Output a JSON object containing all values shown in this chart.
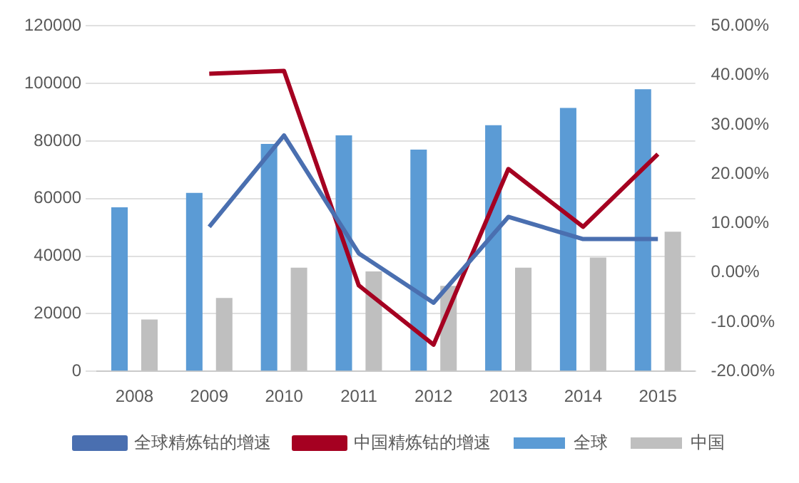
{
  "chart_data": {
    "type": "bar",
    "categories": [
      "2008",
      "2009",
      "2010",
      "2011",
      "2012",
      "2013",
      "2014",
      "2015"
    ],
    "series": [
      {
        "name": "全球",
        "color": "#5b9bd5",
        "values": [
          57000,
          62000,
          79000,
          82000,
          77000,
          85500,
          91500,
          98000
        ]
      },
      {
        "name": "中国",
        "color": "#bfbfbf",
        "values": [
          18000,
          25500,
          36000,
          34700,
          29700,
          36000,
          39500,
          48500
        ]
      },
      {
        "name": "全球精炼钴的增速",
        "type": "line",
        "axis": "y2",
        "color": "#4a6fb0",
        "values": [
          null,
          9.3,
          27.8,
          3.9,
          -6.1,
          11.3,
          6.8,
          6.8
        ]
      },
      {
        "name": "中国精炼钴的增速",
        "type": "line",
        "axis": "y2",
        "color": "#a50021",
        "values": [
          null,
          40.3,
          40.9,
          -2.6,
          -14.6,
          21,
          9.3,
          24
        ]
      }
    ],
    "ylim": [
      0,
      120000
    ],
    "yticks": [
      0,
      20000,
      40000,
      60000,
      80000,
      100000,
      120000
    ],
    "y2lim": [
      -20,
      50
    ],
    "y2ticks": [
      {
        "value": -20,
        "label": "-20.00%"
      },
      {
        "value": -10,
        "label": "-10.00%"
      },
      {
        "value": 0,
        "label": "0.00%"
      },
      {
        "value": 10,
        "label": "10.00%"
      },
      {
        "value": 20,
        "label": "20.00%"
      },
      {
        "value": 30,
        "label": "30.00%"
      },
      {
        "value": 40,
        "label": "40.00%"
      },
      {
        "value": 50,
        "label": "50.00%"
      }
    ],
    "grid": "y",
    "legend": "bottom",
    "marker": "none",
    "line_style": "solid"
  }
}
